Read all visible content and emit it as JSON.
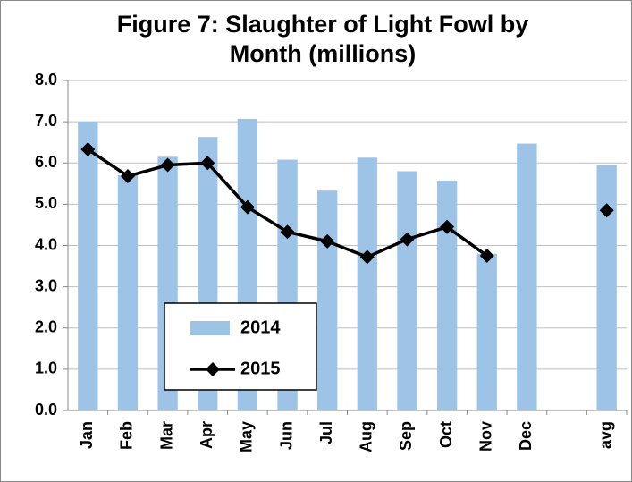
{
  "chart_data": {
    "type": "bar-line",
    "title": "Figure 7: Slaughter of Light Fowl by Month (millions)",
    "categories": [
      "Jan",
      "Feb",
      "Mar",
      "Apr",
      "May",
      "Jun",
      "Jul",
      "Aug",
      "Sep",
      "Oct",
      "Nov",
      "Dec",
      null,
      "avg"
    ],
    "series": [
      {
        "name": "2014",
        "type": "bar",
        "color": "#9dc3e6",
        "values": [
          7.0,
          5.7,
          6.15,
          6.63,
          7.07,
          6.08,
          5.33,
          6.13,
          5.8,
          5.57,
          3.8,
          6.47,
          null,
          5.95
        ]
      },
      {
        "name": "2015",
        "type": "line",
        "color": "#000000",
        "values": [
          6.33,
          5.68,
          5.95,
          6.0,
          4.93,
          4.33,
          4.1,
          3.72,
          4.15,
          4.45,
          3.75,
          null,
          null,
          4.85
        ]
      }
    ],
    "ylim": [
      0,
      8
    ],
    "yticks": [
      {
        "value": 0,
        "label": "0.0"
      },
      {
        "value": 1,
        "label": "1.0"
      },
      {
        "value": 2,
        "label": "2.0"
      },
      {
        "value": 3,
        "label": "3.0"
      },
      {
        "value": 4,
        "label": "4.0"
      },
      {
        "value": 5,
        "label": "5.0"
      },
      {
        "value": 6,
        "label": "6.0"
      },
      {
        "value": 7,
        "label": "7.0"
      },
      {
        "value": 8,
        "label": "8.0"
      }
    ],
    "grid": true
  }
}
